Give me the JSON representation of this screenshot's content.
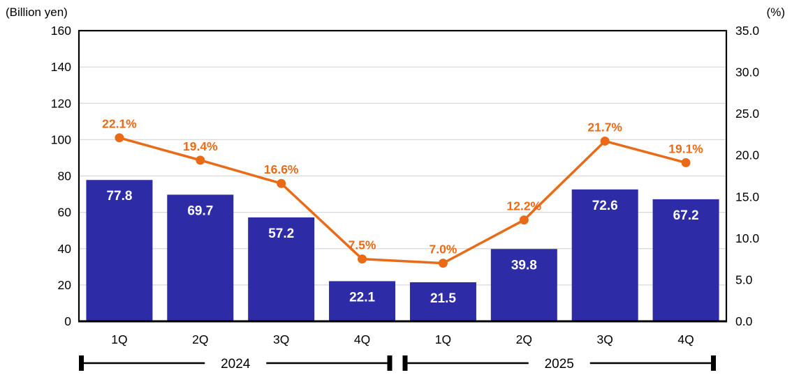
{
  "chart_data": {
    "type": "combo-bar-line",
    "title": "",
    "categories": [
      "1Q",
      "2Q",
      "3Q",
      "4Q",
      "1Q",
      "2Q",
      "3Q",
      "4Q"
    ],
    "groups": [
      {
        "label": "2024",
        "start": 0,
        "end": 3
      },
      {
        "label": "2025",
        "start": 4,
        "end": 7
      }
    ],
    "series": [
      {
        "name": "quarterly-amount",
        "type": "bar",
        "axis": "left",
        "values": [
          77.8,
          69.7,
          57.2,
          22.1,
          21.5,
          39.8,
          72.6,
          67.2
        ],
        "labels": [
          "77.8",
          "69.7",
          "57.2",
          "22.1",
          "21.5",
          "39.8",
          "72.6",
          "67.2"
        ],
        "color": "#2d2ba6",
        "label_color": "#ffffff"
      },
      {
        "name": "percentage-ratio",
        "type": "line",
        "axis": "right",
        "values": [
          22.1,
          19.4,
          16.6,
          7.5,
          7.0,
          12.2,
          21.7,
          19.1
        ],
        "labels": [
          "22.1%",
          "19.4%",
          "16.6%",
          "7.5%",
          "7.0%",
          "12.2%",
          "21.7%",
          "19.1%"
        ],
        "color": "#e96b17",
        "label_color": "#e96b17"
      }
    ],
    "left_axis": {
      "unit": "(Billion yen)",
      "min": 0,
      "max": 160,
      "step": 20,
      "ticks": [
        "0",
        "20",
        "40",
        "60",
        "80",
        "100",
        "120",
        "140",
        "160"
      ]
    },
    "right_axis": {
      "unit": "(%)",
      "min": 0,
      "max": 35,
      "step": 5,
      "ticks": [
        "0.0",
        "5.0",
        "10.0",
        "15.0",
        "20.0",
        "25.0",
        "30.0",
        "35.0"
      ]
    },
    "grid": true,
    "grid_color": "#d9d9d9",
    "axis_color": "#000000",
    "legend": "none"
  }
}
